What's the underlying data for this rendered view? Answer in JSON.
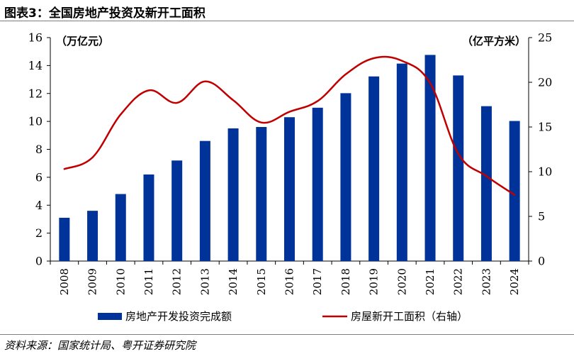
{
  "title": "图表3：全国房地产投资及新开工面积",
  "source": "资料来源：国家统计局、粤开证券研究院",
  "chart_data": {
    "type": "bar+line",
    "categories": [
      "2008",
      "2009",
      "2010",
      "2011",
      "2012",
      "2013",
      "2014",
      "2015",
      "2016",
      "2017",
      "2018",
      "2019",
      "2020",
      "2021",
      "2022",
      "2023",
      "2024"
    ],
    "left_axis": {
      "unit_label": "（万亿元）",
      "range": [
        0,
        16
      ],
      "ticks": [
        0,
        2,
        4,
        6,
        8,
        10,
        12,
        14,
        16
      ]
    },
    "right_axis": {
      "unit_label": "（亿平方米）",
      "range": [
        0,
        25
      ],
      "ticks": [
        0,
        5,
        10,
        15,
        20,
        25
      ]
    },
    "series": [
      {
        "name": "房地产开发投资完成额",
        "type": "bar",
        "axis": "left",
        "color": "#003399",
        "values": [
          3.1,
          3.6,
          4.8,
          6.2,
          7.2,
          8.6,
          9.5,
          9.6,
          10.3,
          10.98,
          12.02,
          13.22,
          14.14,
          14.76,
          13.29,
          11.09,
          10.03
        ]
      },
      {
        "name": "房屋新开工面积（右轴）",
        "type": "line",
        "axis": "right",
        "color": "#C00000",
        "values": [
          10.3,
          11.6,
          16.4,
          19.1,
          17.7,
          20.1,
          18.0,
          15.5,
          16.7,
          17.9,
          20.9,
          22.7,
          22.4,
          19.9,
          12.0,
          9.5,
          7.4
        ]
      }
    ]
  }
}
